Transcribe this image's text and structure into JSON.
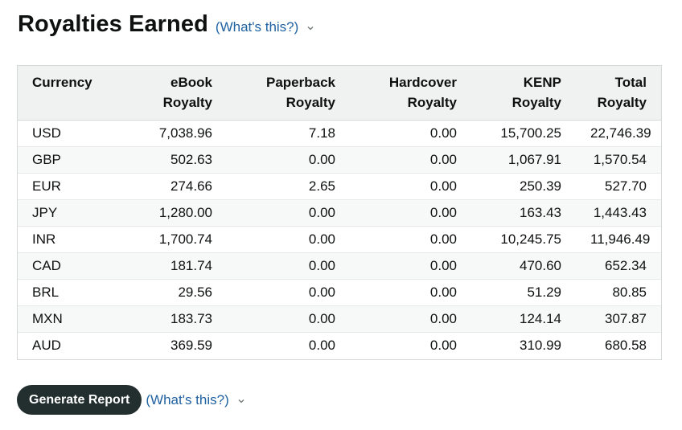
{
  "title": "Royalties Earned",
  "help_link_label": "(What's this?)",
  "table": {
    "headers": [
      {
        "line1": "Currency",
        "line2": ""
      },
      {
        "line1": "eBook",
        "line2": "Royalty"
      },
      {
        "line1": "Paperback",
        "line2": "Royalty"
      },
      {
        "line1": "Hardcover",
        "line2": "Royalty"
      },
      {
        "line1": "KENP",
        "line2": "Royalty"
      },
      {
        "line1": "Total",
        "line2": "Royalty"
      }
    ],
    "rows": [
      [
        "USD",
        "7,038.96",
        "7.18",
        "0.00",
        "15,700.25",
        "22,746.39"
      ],
      [
        "GBP",
        "502.63",
        "0.00",
        "0.00",
        "1,067.91",
        "1,570.54"
      ],
      [
        "EUR",
        "274.66",
        "2.65",
        "0.00",
        "250.39",
        "527.70"
      ],
      [
        "JPY",
        "1,280.00",
        "0.00",
        "0.00",
        "163.43",
        "1,443.43"
      ],
      [
        "INR",
        "1,700.74",
        "0.00",
        "0.00",
        "10,245.75",
        "11,946.49"
      ],
      [
        "CAD",
        "181.74",
        "0.00",
        "0.00",
        "470.60",
        "652.34"
      ],
      [
        "BRL",
        "29.56",
        "0.00",
        "0.00",
        "51.29",
        "80.85"
      ],
      [
        "MXN",
        "183.73",
        "0.00",
        "0.00",
        "124.14",
        "307.87"
      ],
      [
        "AUD",
        "369.59",
        "0.00",
        "0.00",
        "310.99",
        "680.58"
      ]
    ]
  },
  "footer": {
    "generate_button_label": "Generate Report",
    "help_link_label": "(What's this?)"
  },
  "icons": {
    "help_dropdown": "chevron-down-icon"
  },
  "colors": {
    "link": "#2162a1",
    "button_bg": "#232f2e",
    "header_bg": "#f0f2f2"
  }
}
